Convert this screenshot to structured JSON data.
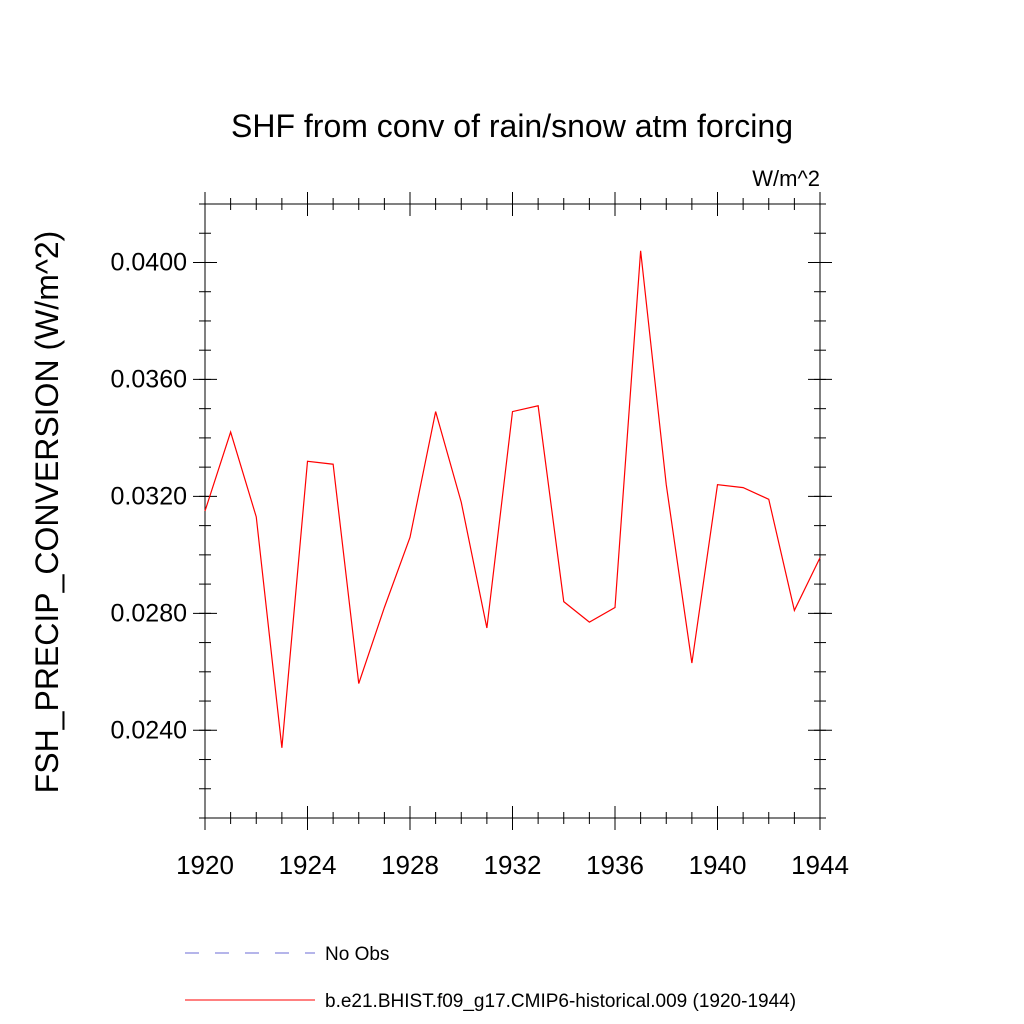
{
  "chart_data": {
    "type": "line",
    "title": "SHF from conv of rain/snow atm forcing",
    "units_label": "W/m^2",
    "ylabel": "FSH_PRECIP_CONVERSION  (W/m^2)",
    "xlabel": "",
    "xlim": [
      1920,
      1944
    ],
    "ylim": [
      0.021,
      0.042
    ],
    "x_ticks": [
      1920,
      1924,
      1928,
      1932,
      1936,
      1940,
      1944
    ],
    "x_tick_labels": [
      "1920",
      "1924",
      "1928",
      "1932",
      "1936",
      "1940",
      "1944"
    ],
    "y_ticks": [
      0.024,
      0.028,
      0.032,
      0.036,
      0.04
    ],
    "y_tick_labels": [
      "0.0240",
      "0.0280",
      "0.0320",
      "0.0360",
      "0.0400"
    ],
    "y_minor_step": 0.001,
    "x_minor_step": 1,
    "grid": false,
    "series": [
      {
        "name": "b.e21.BHIST.f09_g17.CMIP6-historical.009 (1920-1944)",
        "color": "#ff0000",
        "style": "solid",
        "x": [
          1920,
          1921,
          1922,
          1923,
          1924,
          1925,
          1926,
          1927,
          1928,
          1929,
          1930,
          1931,
          1932,
          1933,
          1934,
          1935,
          1936,
          1937,
          1938,
          1939,
          1940,
          1941,
          1942,
          1943,
          1944
        ],
        "values": [
          0.0315,
          0.0342,
          0.0313,
          0.0234,
          0.0332,
          0.0331,
          0.0256,
          0.0282,
          0.0306,
          0.0349,
          0.0318,
          0.0275,
          0.0349,
          0.0351,
          0.0284,
          0.0277,
          0.0282,
          0.0404,
          0.0324,
          0.0263,
          0.0324,
          0.0323,
          0.0319,
          0.0281,
          0.0299
        ]
      }
    ],
    "legend": {
      "placement": "bottom",
      "entries": [
        {
          "label": "No Obs",
          "color": "#6b6bd6",
          "style": "dashed"
        },
        {
          "label": "b.e21.BHIST.f09_g17.CMIP6-historical.009 (1920-1944)",
          "color": "#ff0000",
          "style": "solid"
        }
      ]
    }
  }
}
